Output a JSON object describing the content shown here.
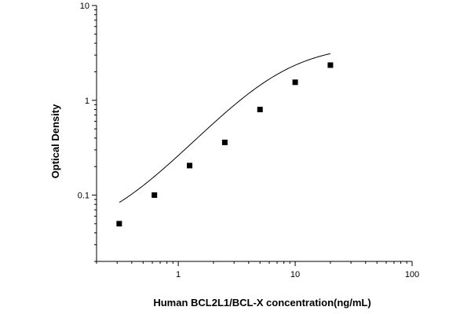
{
  "chart_data": {
    "type": "scatter",
    "xlabel": "Human BCL2L1/BCL-X concentration(ng/mL)",
    "ylabel": "Optical Density",
    "x_scale": "log",
    "y_scale": "log",
    "xlim": [
      0.2,
      100
    ],
    "ylim": [
      0.02,
      10
    ],
    "x_tick_labels": [
      {
        "value": 1,
        "label": "1"
      },
      {
        "value": 10,
        "label": "10"
      },
      {
        "value": 100,
        "label": "100"
      }
    ],
    "y_tick_labels": [
      {
        "value": 0.1,
        "label": "0.1"
      },
      {
        "value": 1,
        "label": "1"
      },
      {
        "value": 10,
        "label": "10"
      }
    ],
    "grid": false,
    "series": [
      {
        "marker": "square",
        "x": [
          0.3125,
          0.625,
          1.25,
          2.5,
          5,
          10,
          20
        ],
        "y": [
          0.05,
          0.1,
          0.205,
          0.36,
          0.8,
          1.55,
          2.35
        ]
      }
    ],
    "fit_curve": {
      "type": "4PL",
      "A": 0.036,
      "B": 1.38,
      "C": 7.5,
      "D": 3.9,
      "x_range": [
        0.3125,
        20
      ]
    }
  }
}
